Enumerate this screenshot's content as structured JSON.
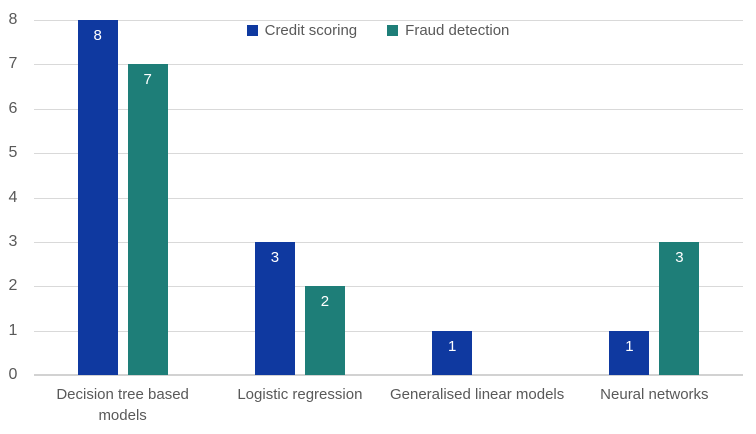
{
  "chart_data": {
    "type": "bar",
    "title": "",
    "xlabel": "",
    "ylabel": "",
    "categories": [
      "Decision tree based models",
      "Logistic regression",
      "Generalised linear models",
      "Neural networks"
    ],
    "series": [
      {
        "name": "Credit scoring",
        "color": "#0f39a0",
        "values": [
          8,
          3,
          1,
          1
        ]
      },
      {
        "name": "Fraud detection",
        "color": "#1e7e78",
        "values": [
          7,
          2,
          0,
          3
        ]
      }
    ],
    "ylim": [
      0,
      8
    ],
    "yticks": [
      0,
      1,
      2,
      3,
      4,
      5,
      6,
      7,
      8
    ],
    "grid": true,
    "legend_position": "top-center",
    "data_labels": {
      "position": "inside-end",
      "color": "#ffffff"
    }
  },
  "colors": {
    "background": "#ffffff",
    "gridline": "#d9d9d9",
    "axis_line": "#d2d2d2",
    "axis_text": "#595959"
  }
}
